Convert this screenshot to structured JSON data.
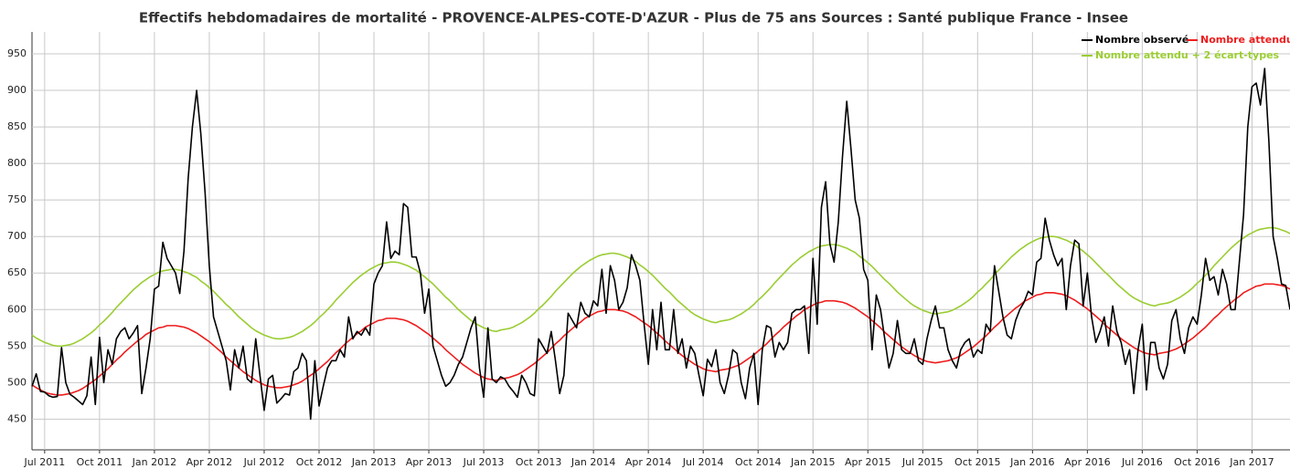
{
  "chart_data": {
    "type": "line",
    "title": "Effectifs hebdomadaires de mortalité - PROVENCE-ALPES-COTE-D'AZUR - Plus de 75 ans Sources : Santé publique France - Insee",
    "categories": [
      null,
      null,
      null,
      "Jul 2011",
      null,
      null,
      null,
      null,
      null,
      null,
      null,
      null,
      null,
      null,
      null,
      null,
      "Oct 2011",
      null,
      null,
      null,
      null,
      null,
      null,
      null,
      null,
      null,
      null,
      null,
      null,
      "Jan 2012",
      null,
      null,
      null,
      null,
      null,
      null,
      null,
      null,
      null,
      null,
      null,
      null,
      "Apr 2012",
      null,
      null,
      null,
      null,
      null,
      null,
      null,
      null,
      null,
      null,
      null,
      null,
      "Jul 2012",
      null,
      null,
      null,
      null,
      null,
      null,
      null,
      null,
      null,
      null,
      null,
      null,
      "Oct 2012",
      null,
      null,
      null,
      null,
      null,
      null,
      null,
      null,
      null,
      null,
      null,
      null,
      "Jan 2013",
      null,
      null,
      null,
      null,
      null,
      null,
      null,
      null,
      null,
      null,
      null,
      null,
      "Apr 2013",
      null,
      null,
      null,
      null,
      null,
      null,
      null,
      null,
      null,
      null,
      null,
      null,
      "Jul 2013",
      null,
      null,
      null,
      null,
      null,
      null,
      null,
      null,
      null,
      null,
      null,
      null,
      "Oct 2013",
      null,
      null,
      null,
      null,
      null,
      null,
      null,
      null,
      null,
      null,
      null,
      null,
      "Jan 2014",
      null,
      null,
      null,
      null,
      null,
      null,
      null,
      null,
      null,
      null,
      null,
      null,
      "Apr 2014",
      null,
      null,
      null,
      null,
      null,
      null,
      null,
      null,
      null,
      null,
      null,
      null,
      "Jul 2014",
      null,
      null,
      null,
      null,
      null,
      null,
      null,
      null,
      null,
      null,
      null,
      null,
      "Oct 2014",
      null,
      null,
      null,
      null,
      null,
      null,
      null,
      null,
      null,
      null,
      null,
      null,
      "Jan 2015",
      null,
      null,
      null,
      null,
      null,
      null,
      null,
      null,
      null,
      null,
      null,
      null,
      "Apr 2015",
      null,
      null,
      null,
      null,
      null,
      null,
      null,
      null,
      null,
      null,
      null,
      null,
      "Jul 2015",
      null,
      null,
      null,
      null,
      null,
      null,
      null,
      null,
      null,
      null,
      null,
      null,
      "Oct 2015",
      null,
      null,
      null,
      null,
      null,
      null,
      null,
      null,
      null,
      null,
      null,
      null,
      "Jan 2016",
      null,
      null,
      null,
      null,
      null,
      null,
      null,
      null,
      null,
      null,
      null,
      null,
      "Apr 2016",
      null,
      null,
      null,
      null,
      null,
      null,
      null,
      null,
      null,
      null,
      null,
      null,
      "Jul 2016",
      null,
      null,
      null,
      null,
      null,
      null,
      null,
      null,
      null,
      null,
      null,
      null,
      "Oct 2016",
      null,
      null,
      null,
      null,
      null,
      null,
      null,
      null,
      null,
      null,
      null,
      null,
      "Jan 2017",
      null,
      null,
      null,
      null,
      null,
      null,
      null,
      null,
      null
    ],
    "series": [
      {
        "name": "Nombre observé",
        "color": "#000000",
        "values": [
          495,
          512,
          488,
          487,
          482,
          480,
          481,
          548,
          500,
          484,
          480,
          475,
          470,
          482,
          535,
          470,
          562,
          500,
          545,
          525,
          560,
          570,
          575,
          560,
          568,
          578,
          485,
          520,
          560,
          628,
          632,
          692,
          670,
          660,
          650,
          622,
          680,
          780,
          850,
          900,
          840,
          760,
          660,
          590,
          570,
          550,
          530,
          490,
          545,
          520,
          550,
          505,
          500,
          560,
          510,
          462,
          505,
          510,
          472,
          478,
          485,
          483,
          515,
          520,
          540,
          530,
          450,
          530,
          468,
          495,
          520,
          530,
          530,
          545,
          535,
          590,
          560,
          570,
          565,
          575,
          565,
          635,
          650,
          660,
          720,
          670,
          680,
          675,
          745,
          740,
          672,
          672,
          650,
          595,
          628,
          550,
          530,
          510,
          495,
          500,
          510,
          525,
          535,
          555,
          575,
          590,
          520,
          480,
          575,
          505,
          500,
          508,
          505,
          495,
          488,
          480,
          510,
          500,
          485,
          482,
          560,
          550,
          540,
          570,
          530,
          485,
          510,
          595,
          585,
          575,
          610,
          595,
          590,
          612,
          605,
          655,
          595,
          660,
          640,
          600,
          610,
          630,
          675,
          660,
          640,
          580,
          525,
          600,
          545,
          610,
          545,
          545,
          600,
          540,
          560,
          520,
          550,
          540,
          510,
          482,
          532,
          522,
          545,
          500,
          485,
          510,
          545,
          540,
          500,
          478,
          520,
          540,
          470,
          545,
          578,
          575,
          535,
          555,
          545,
          555,
          595,
          600,
          600,
          605,
          540,
          670,
          580,
          740,
          775,
          690,
          665,
          720,
          810,
          885,
          820,
          750,
          725,
          655,
          640,
          545,
          620,
          600,
          560,
          520,
          540,
          585,
          545,
          540,
          540,
          560,
          530,
          525,
          560,
          585,
          605,
          575,
          575,
          545,
          530,
          520,
          545,
          555,
          560,
          535,
          545,
          540,
          580,
          570,
          660,
          625,
          590,
          565,
          560,
          585,
          600,
          610,
          625,
          620,
          665,
          670,
          725,
          695,
          675,
          660,
          670,
          600,
          660,
          695,
          690,
          605,
          650,
          590,
          555,
          570,
          590,
          550,
          605,
          570,
          555,
          525,
          545,
          485,
          545,
          580,
          490,
          555,
          555,
          520,
          505,
          525,
          585,
          600,
          560,
          540,
          575,
          590,
          580,
          620,
          670,
          640,
          645,
          620,
          655,
          635,
          600,
          600,
          665,
          730,
          850,
          905,
          910,
          880,
          930,
          830,
          700,
          670,
          635,
          633,
          600
        ]
      },
      {
        "name": "Nombre attendu",
        "color": "#ee1c1c",
        "values": [
          497,
          493,
          490,
          487,
          485,
          484,
          483,
          483,
          484,
          485,
          487,
          489,
          492,
          496,
          500,
          504,
          509,
          514,
          519,
          525,
          531,
          536,
          542,
          547,
          552,
          557,
          561,
          566,
          569,
          572,
          575,
          576,
          578,
          578,
          578,
          577,
          576,
          574,
          571,
          568,
          564,
          560,
          556,
          551,
          546,
          541,
          535,
          530,
          525,
          520,
          515,
          511,
          507,
          503,
          500,
          497,
          495,
          494,
          493,
          493,
          494,
          495,
          497,
          499,
          502,
          506,
          510,
          514,
          519,
          524,
          529,
          535,
          541,
          546,
          552,
          557,
          562,
          567,
          571,
          576,
          579,
          582,
          585,
          586,
          588,
          588,
          588,
          587,
          586,
          584,
          581,
          578,
          574,
          570,
          566,
          561,
          556,
          551,
          545,
          540,
          535,
          530,
          525,
          521,
          517,
          513,
          510,
          507,
          505,
          504,
          503,
          505,
          506,
          507,
          509,
          511,
          514,
          518,
          522,
          526,
          531,
          536,
          541,
          547,
          553,
          558,
          564,
          569,
          574,
          579,
          583,
          588,
          591,
          594,
          597,
          598,
          600,
          600,
          600,
          599,
          598,
          596,
          593,
          590,
          586,
          582,
          578,
          573,
          568,
          563,
          557,
          552,
          547,
          542,
          537,
          533,
          529,
          525,
          522,
          519,
          517,
          516,
          515,
          517,
          518,
          519,
          521,
          523,
          526,
          530,
          534,
          538,
          543,
          548,
          553,
          559,
          565,
          570,
          576,
          581,
          586,
          591,
          595,
          600,
          603,
          606,
          609,
          610,
          612,
          612,
          612,
          611,
          610,
          608,
          605,
          602,
          598,
          594,
          590,
          585,
          580,
          575,
          569,
          564,
          559,
          554,
          549,
          545,
          541,
          537,
          534,
          531,
          529,
          528,
          527,
          528,
          529,
          530,
          532,
          534,
          537,
          541,
          545,
          549,
          554,
          559,
          564,
          570,
          576,
          581,
          587,
          592,
          597,
          602,
          606,
          611,
          614,
          617,
          620,
          621,
          623,
          623,
          623,
          622,
          621,
          619,
          616,
          613,
          609,
          605,
          601,
          596,
          591,
          586,
          580,
          575,
          570,
          565,
          560,
          556,
          552,
          548,
          545,
          542,
          540,
          539,
          538,
          540,
          541,
          542,
          544,
          546,
          549,
          553,
          557,
          561,
          566,
          571,
          576,
          582,
          588,
          593,
          599,
          604,
          609,
          614,
          618,
          623,
          626,
          629,
          632,
          633,
          635,
          635,
          635,
          634,
          633,
          631,
          628
        ]
      },
      {
        "name": "Nombre attendu + 2 écart-types",
        "color": "#9acd32",
        "values": [
          565,
          561,
          558,
          555,
          553,
          551,
          550,
          550,
          551,
          552,
          554,
          557,
          560,
          564,
          568,
          573,
          579,
          584,
          590,
          596,
          603,
          609,
          615,
          621,
          627,
          632,
          637,
          641,
          645,
          648,
          651,
          653,
          654,
          655,
          655,
          654,
          652,
          650,
          647,
          644,
          639,
          635,
          630,
          625,
          619,
          613,
          607,
          602,
          596,
          590,
          585,
          580,
          575,
          571,
          568,
          565,
          563,
          561,
          560,
          560,
          561,
          562,
          564,
          567,
          570,
          574,
          578,
          583,
          589,
          594,
          600,
          606,
          613,
          619,
          625,
          631,
          637,
          642,
          647,
          651,
          655,
          658,
          661,
          663,
          664,
          665,
          665,
          664,
          662,
          660,
          657,
          654,
          649,
          645,
          640,
          635,
          629,
          623,
          617,
          612,
          606,
          600,
          595,
          590,
          585,
          581,
          578,
          575,
          573,
          571,
          570,
          572,
          573,
          574,
          576,
          579,
          582,
          586,
          590,
          595,
          601,
          606,
          612,
          618,
          625,
          631,
          637,
          643,
          649,
          654,
          659,
          663,
          667,
          670,
          673,
          675,
          676,
          677,
          677,
          676,
          674,
          672,
          669,
          666,
          661,
          657,
          652,
          647,
          641,
          635,
          629,
          624,
          618,
          612,
          607,
          602,
          597,
          593,
          590,
          587,
          585,
          583,
          582,
          584,
          585,
          586,
          588,
          591,
          594,
          598,
          602,
          607,
          613,
          618,
          624,
          630,
          637,
          643,
          649,
          655,
          661,
          666,
          671,
          675,
          679,
          682,
          685,
          687,
          688,
          689,
          689,
          688,
          686,
          684,
          681,
          678,
          673,
          669,
          664,
          659,
          653,
          647,
          641,
          636,
          630,
          624,
          619,
          614,
          609,
          605,
          602,
          599,
          597,
          595,
          594,
          595,
          596,
          597,
          599,
          602,
          605,
          609,
          613,
          618,
          624,
          629,
          635,
          641,
          648,
          654,
          660,
          666,
          672,
          677,
          682,
          686,
          690,
          693,
          696,
          698,
          699,
          700,
          700,
          699,
          697,
          695,
          692,
          689,
          684,
          680,
          675,
          670,
          664,
          658,
          652,
          647,
          641,
          635,
          630,
          625,
          620,
          616,
          613,
          610,
          608,
          606,
          605,
          607,
          608,
          609,
          611,
          614,
          617,
          621,
          625,
          630,
          636,
          641,
          647,
          653,
          660,
          666,
          672,
          678,
          684,
          689,
          694,
          698,
          702,
          705,
          708,
          710,
          711,
          712,
          712,
          711,
          709,
          707,
          704
        ]
      }
    ],
    "ylim": [
      408,
      980
    ],
    "yticks": [
      450,
      500,
      550,
      600,
      650,
      700,
      750,
      800,
      850,
      900,
      950
    ],
    "grid": true,
    "legend": "top-right"
  }
}
